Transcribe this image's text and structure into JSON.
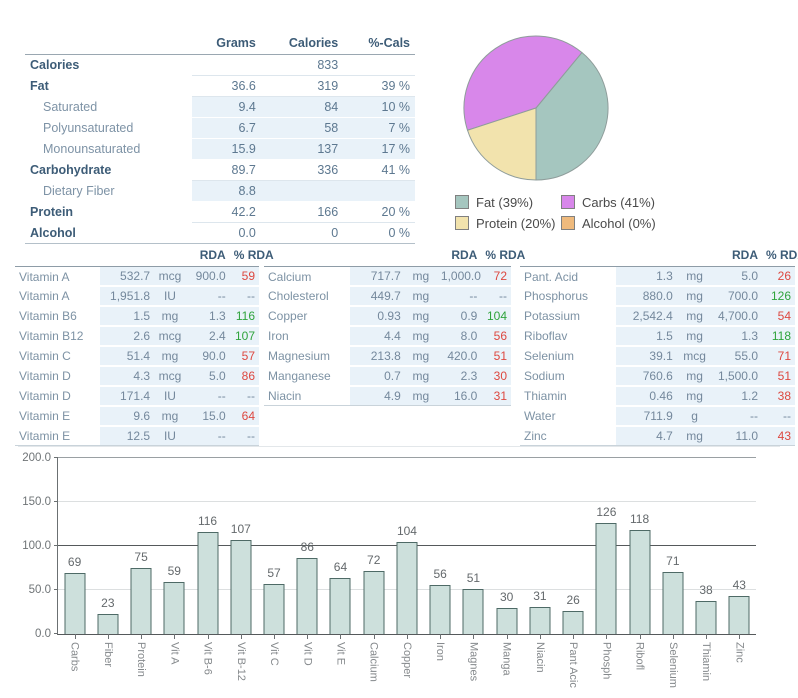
{
  "summary": {
    "columns": [
      "Grams",
      "Calories",
      "%-Cals"
    ],
    "rows": [
      {
        "label": "Calories",
        "style": "main",
        "grams": "",
        "calories": "833",
        "pcals": ""
      },
      {
        "label": "Fat",
        "style": "main",
        "grams": "36.6",
        "calories": "319",
        "pcals": "39 %"
      },
      {
        "label": "Saturated",
        "style": "sub",
        "grams": "9.4",
        "calories": "84",
        "pcals": "10 %"
      },
      {
        "label": "Polyunsaturated",
        "style": "sub",
        "grams": "6.7",
        "calories": "58",
        "pcals": "7 %"
      },
      {
        "label": "Monounsaturated",
        "style": "sub",
        "grams": "15.9",
        "calories": "137",
        "pcals": "17 %"
      },
      {
        "label": "Carbohydrate",
        "style": "main",
        "grams": "89.7",
        "calories": "336",
        "pcals": "41 %"
      },
      {
        "label": "Dietary Fiber",
        "style": "sub",
        "grams": "8.8",
        "calories": "",
        "pcals": ""
      },
      {
        "label": "Protein",
        "style": "main",
        "grams": "42.2",
        "calories": "166",
        "pcals": "20 %"
      },
      {
        "label": "Alcohol",
        "style": "main",
        "grams": "0.0",
        "calories": "0",
        "pcals": "0 %"
      }
    ]
  },
  "nutrient_tables": [
    {
      "columns": [
        "RDA",
        "% RDA"
      ],
      "rows": [
        {
          "label": "Vitamin A",
          "amount": "532.7",
          "unit": "mcg",
          "rda": "900.0",
          "pct": "59",
          "status": "low"
        },
        {
          "label": "Vitamin A",
          "amount": "1,951.8",
          "unit": "IU",
          "rda": "--",
          "pct": "--",
          "status": "na"
        },
        {
          "label": "Vitamin B6",
          "amount": "1.5",
          "unit": "mg",
          "rda": "1.3",
          "pct": "116",
          "status": "high"
        },
        {
          "label": "Vitamin B12",
          "amount": "2.6",
          "unit": "mcg",
          "rda": "2.4",
          "pct": "107",
          "status": "high"
        },
        {
          "label": "Vitamin C",
          "amount": "51.4",
          "unit": "mg",
          "rda": "90.0",
          "pct": "57",
          "status": "low"
        },
        {
          "label": "Vitamin D",
          "amount": "4.3",
          "unit": "mcg",
          "rda": "5.0",
          "pct": "86",
          "status": "low"
        },
        {
          "label": "Vitamin D",
          "amount": "171.4",
          "unit": "IU",
          "rda": "--",
          "pct": "--",
          "status": "na"
        },
        {
          "label": "Vitamin E",
          "amount": "9.6",
          "unit": "mg",
          "rda": "15.0",
          "pct": "64",
          "status": "low"
        },
        {
          "label": "Vitamin E",
          "amount": "12.5",
          "unit": "IU",
          "rda": "--",
          "pct": "--",
          "status": "na"
        }
      ]
    },
    {
      "columns": [
        "RDA",
        "% RDA"
      ],
      "rows": [
        {
          "label": "Calcium",
          "amount": "717.7",
          "unit": "mg",
          "rda": "1,000.0",
          "pct": "72",
          "status": "low"
        },
        {
          "label": "Cholesterol",
          "amount": "449.7",
          "unit": "mg",
          "rda": "--",
          "pct": "--",
          "status": "na"
        },
        {
          "label": "Copper",
          "amount": "0.93",
          "unit": "mg",
          "rda": "0.9",
          "pct": "104",
          "status": "high"
        },
        {
          "label": "Iron",
          "amount": "4.4",
          "unit": "mg",
          "rda": "8.0",
          "pct": "56",
          "status": "low"
        },
        {
          "label": "Magnesium",
          "amount": "213.8",
          "unit": "mg",
          "rda": "420.0",
          "pct": "51",
          "status": "low"
        },
        {
          "label": "Manganese",
          "amount": "0.7",
          "unit": "mg",
          "rda": "2.3",
          "pct": "30",
          "status": "low"
        },
        {
          "label": "Niacin",
          "amount": "4.9",
          "unit": "mg",
          "rda": "16.0",
          "pct": "31",
          "status": "low"
        }
      ]
    },
    {
      "columns": [
        "RDA",
        "% RDA"
      ],
      "rows": [
        {
          "label": "Pant. Acid",
          "amount": "1.3",
          "unit": "mg",
          "rda": "5.0",
          "pct": "26",
          "status": "low"
        },
        {
          "label": "Phosphorus",
          "amount": "880.0",
          "unit": "mg",
          "rda": "700.0",
          "pct": "126",
          "status": "high"
        },
        {
          "label": "Potassium",
          "amount": "2,542.4",
          "unit": "mg",
          "rda": "4,700.0",
          "pct": "54",
          "status": "low"
        },
        {
          "label": "Riboflav",
          "amount": "1.5",
          "unit": "mg",
          "rda": "1.3",
          "pct": "118",
          "status": "high"
        },
        {
          "label": "Selenium",
          "amount": "39.1",
          "unit": "mcg",
          "rda": "55.0",
          "pct": "71",
          "status": "low"
        },
        {
          "label": "Sodium",
          "amount": "760.6",
          "unit": "mg",
          "rda": "1,500.0",
          "pct": "51",
          "status": "low"
        },
        {
          "label": "Thiamin",
          "amount": "0.46",
          "unit": "mg",
          "rda": "1.2",
          "pct": "38",
          "status": "low"
        },
        {
          "label": "Water",
          "amount": "711.9",
          "unit": "g",
          "rda": "--",
          "pct": "--",
          "status": "na"
        },
        {
          "label": "Zinc",
          "amount": "4.7",
          "unit": "mg",
          "rda": "11.0",
          "pct": "43",
          "status": "low"
        }
      ]
    }
  ],
  "chart_data": [
    {
      "type": "pie",
      "labels": [
        "Fat",
        "Carbs",
        "Protein",
        "Alcohol"
      ],
      "values": [
        39,
        41,
        20,
        0
      ],
      "colors": [
        "#a5c6bf",
        "#d887ea",
        "#f2e3ad",
        "#efba7d"
      ],
      "legend_labels": [
        "Fat  (39%)",
        "Carbs  (41%)",
        "Protein  (20%)",
        "Alcohol  (0%)"
      ],
      "legend_position": "bottom",
      "start_angle_deg": 180,
      "direction": "ccw",
      "stroke": "#8f9d9b"
    },
    {
      "type": "bar",
      "title": "",
      "xlabel": "",
      "ylabel": "",
      "categories": [
        "Carbs",
        "Fiber",
        "Protein",
        "Vit A",
        "Vit B-6",
        "Vit B-12",
        "Vit C",
        "Vit D",
        "Vit E",
        "Calcium",
        "Copper",
        "Iron",
        "Magnes",
        "Manga",
        "Niacin",
        "Pant Acic",
        "Phosph",
        "Ribofl",
        "Selenium",
        "Thiamin",
        "Zinc"
      ],
      "values": [
        69,
        23,
        75,
        59,
        116,
        107,
        57,
        86,
        64,
        72,
        104,
        56,
        51,
        30,
        31,
        26,
        126,
        118,
        71,
        38,
        43
      ],
      "ylim": [
        0,
        200
      ],
      "yticks": [
        0,
        50,
        100,
        150,
        200
      ],
      "ytick_labels": [
        "0.0",
        "50.0",
        "100.0",
        "150.0",
        "200.0"
      ],
      "reference_line": 100,
      "grid": true,
      "value_labels": true,
      "bar_fill": "#cde0dc",
      "bar_border": "#4e6a66"
    }
  ],
  "colors": {
    "header_text": "#3d5c77",
    "row_highlight": "#e9f2f9",
    "pct_low": "#dd4840",
    "pct_high": "#2fa33c",
    "value_text": "#74889c"
  }
}
